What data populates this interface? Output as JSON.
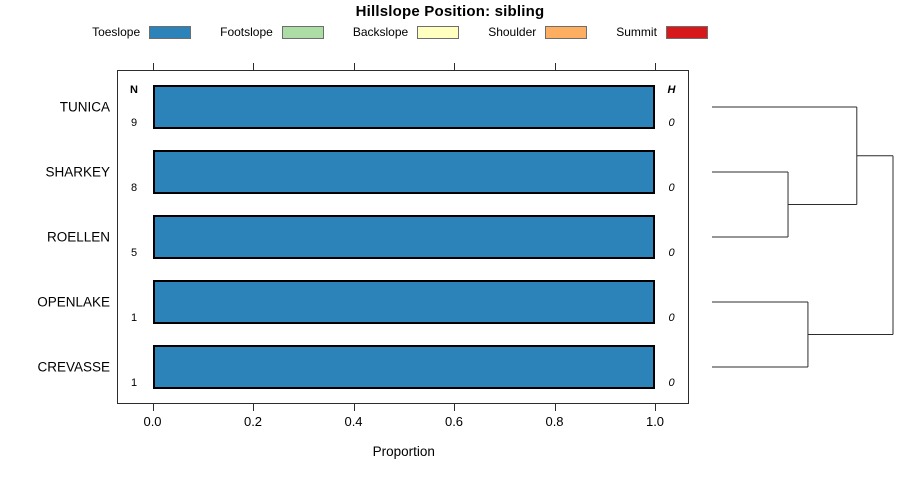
{
  "title": "Hillslope Position: sibling",
  "axis": {
    "xlabel": "Proportion",
    "tick_labels": [
      "0.0",
      "0.2",
      "0.4",
      "0.6",
      "0.8",
      "1.0"
    ],
    "tick_values": [
      0.0,
      0.2,
      0.4,
      0.6,
      0.8,
      1.0
    ]
  },
  "columns": {
    "n_header": "N",
    "h_header": "H"
  },
  "chart_data": {
    "type": "bar",
    "orientation": "horizontal",
    "title": "Hillslope Position: sibling",
    "xlabel": "Proportion",
    "xlim": [
      0.0,
      1.0
    ],
    "grid": false,
    "legend_position": "top",
    "categories": [
      "TUNICA",
      "SHARKEY",
      "ROELLEN",
      "OPENLAKE",
      "CREVASSE"
    ],
    "series": [
      {
        "name": "Toeslope",
        "color": "#2b83ba",
        "values": [
          1.0,
          1.0,
          1.0,
          1.0,
          1.0
        ]
      },
      {
        "name": "Footslope",
        "color": "#abdda4",
        "values": [
          0,
          0,
          0,
          0,
          0
        ]
      },
      {
        "name": "Backslope",
        "color": "#ffffbf",
        "values": [
          0,
          0,
          0,
          0,
          0
        ]
      },
      {
        "name": "Shoulder",
        "color": "#fdae61",
        "values": [
          0,
          0,
          0,
          0,
          0
        ]
      },
      {
        "name": "Summit",
        "color": "#d7191c",
        "values": [
          0,
          0,
          0,
          0,
          0
        ]
      }
    ],
    "n_obs": [
      9,
      8,
      5,
      1,
      1
    ],
    "shannon_H": [
      "0",
      "0",
      "0",
      "0",
      "0"
    ],
    "dendrogram": {
      "leaves": [
        "TUNICA",
        "SHARKEY",
        "ROELLEN",
        "OPENLAKE",
        "CREVASSE"
      ],
      "segments": [
        {
          "x1": 0.0,
          "y1": 0,
          "x2": 0.8,
          "y2": 0
        },
        {
          "x1": 0.0,
          "y1": 1,
          "x2": 0.42,
          "y2": 1
        },
        {
          "x1": 0.0,
          "y1": 2,
          "x2": 0.42,
          "y2": 2
        },
        {
          "x1": 0.42,
          "y1": 1,
          "x2": 0.42,
          "y2": 2
        },
        {
          "x1": 0.42,
          "y1": 1.5,
          "x2": 0.8,
          "y2": 1.5
        },
        {
          "x1": 0.8,
          "y1": 0,
          "x2": 0.8,
          "y2": 1.5
        },
        {
          "x1": 0.8,
          "y1": 0.75,
          "x2": 1.0,
          "y2": 0.75
        },
        {
          "x1": 0.0,
          "y1": 3,
          "x2": 0.53,
          "y2": 3
        },
        {
          "x1": 0.0,
          "y1": 4,
          "x2": 0.53,
          "y2": 4
        },
        {
          "x1": 0.53,
          "y1": 3,
          "x2": 0.53,
          "y2": 4
        },
        {
          "x1": 0.53,
          "y1": 3.5,
          "x2": 1.0,
          "y2": 3.5
        },
        {
          "x1": 1.0,
          "y1": 0.75,
          "x2": 1.0,
          "y2": 3.5
        }
      ]
    },
    "colors": {
      "bar_border": "#000000",
      "box_border": "#2c2c2c",
      "dendrogram_line": "#2c2c2c"
    }
  }
}
